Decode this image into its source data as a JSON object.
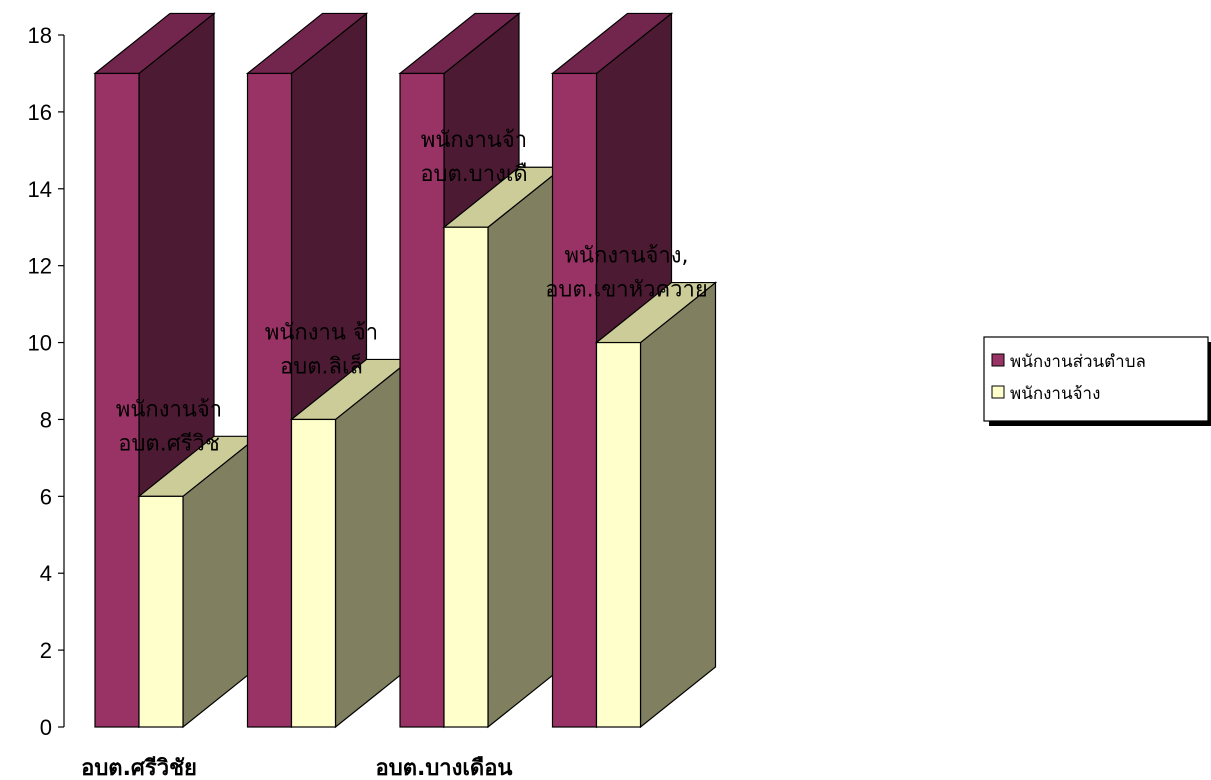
{
  "chart_data": {
    "type": "bar",
    "categories": [
      "อบต.ศรีวิชัย",
      "อบต.ลิเล็ด",
      "อบต.บางเดือน",
      "อบต.เขาหัวควาย"
    ],
    "category_labels_shown": [
      "อบต.ศรีวิชัย",
      "",
      "อบต.บางเดือน",
      ""
    ],
    "series": [
      {
        "name": "พนักงานส่วนตำบล",
        "values": [
          17,
          17,
          17,
          17
        ],
        "color": "#993366"
      },
      {
        "name": "พนักงานจ้าง",
        "values": [
          6,
          8,
          13,
          10
        ],
        "color": "#ffffcc"
      }
    ],
    "data_labels": [
      {
        "line1": "พนักงานจ้า",
        "line2": "อบต.ศรีวิช"
      },
      {
        "line1": "พนักงาน จ้า",
        "line2": "อบต.ลิเล็"
      },
      {
        "line1": "พนักงานจ้า",
        "line2": "อบต.บางเดื"
      },
      {
        "line1": "พนักงานจ้าง,",
        "line2": "อบต.เขาหัวควาย"
      }
    ],
    "yticks": [
      "0",
      "2",
      "4",
      "6",
      "8",
      "10",
      "12",
      "14",
      "16",
      "18"
    ],
    "ylim": [
      0,
      18
    ],
    "title": "",
    "xlabel": "",
    "ylabel": "",
    "grid": false,
    "legend_position": "right",
    "three_d": true
  },
  "legend": {
    "items": [
      {
        "label": "พนักงานส่วนตำบล",
        "color": "#993366"
      },
      {
        "label": "พนักงานจ้าง",
        "color": "#ffffcc"
      }
    ]
  }
}
